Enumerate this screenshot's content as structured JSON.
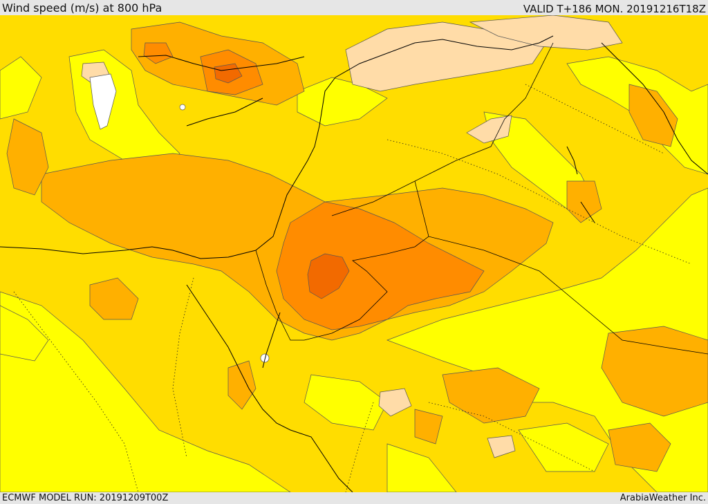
{
  "header": {
    "title": "Wind speed (m/s) at 800 hPa",
    "valid": "VALID T+186 MON. 20191216T18Z"
  },
  "footer": {
    "model_run": "ECMWF MODEL RUN: 20191209T00Z",
    "credit": "ArabiaWeather Inc."
  },
  "palette": {
    "calm": "#ffffff",
    "very_light": "#ffff00",
    "light": "#ffdd00",
    "moderate": "#ffb000",
    "strong": "#ff8c00",
    "very_strong": "#f26a00",
    "highlight": "#ffdca8"
  }
}
